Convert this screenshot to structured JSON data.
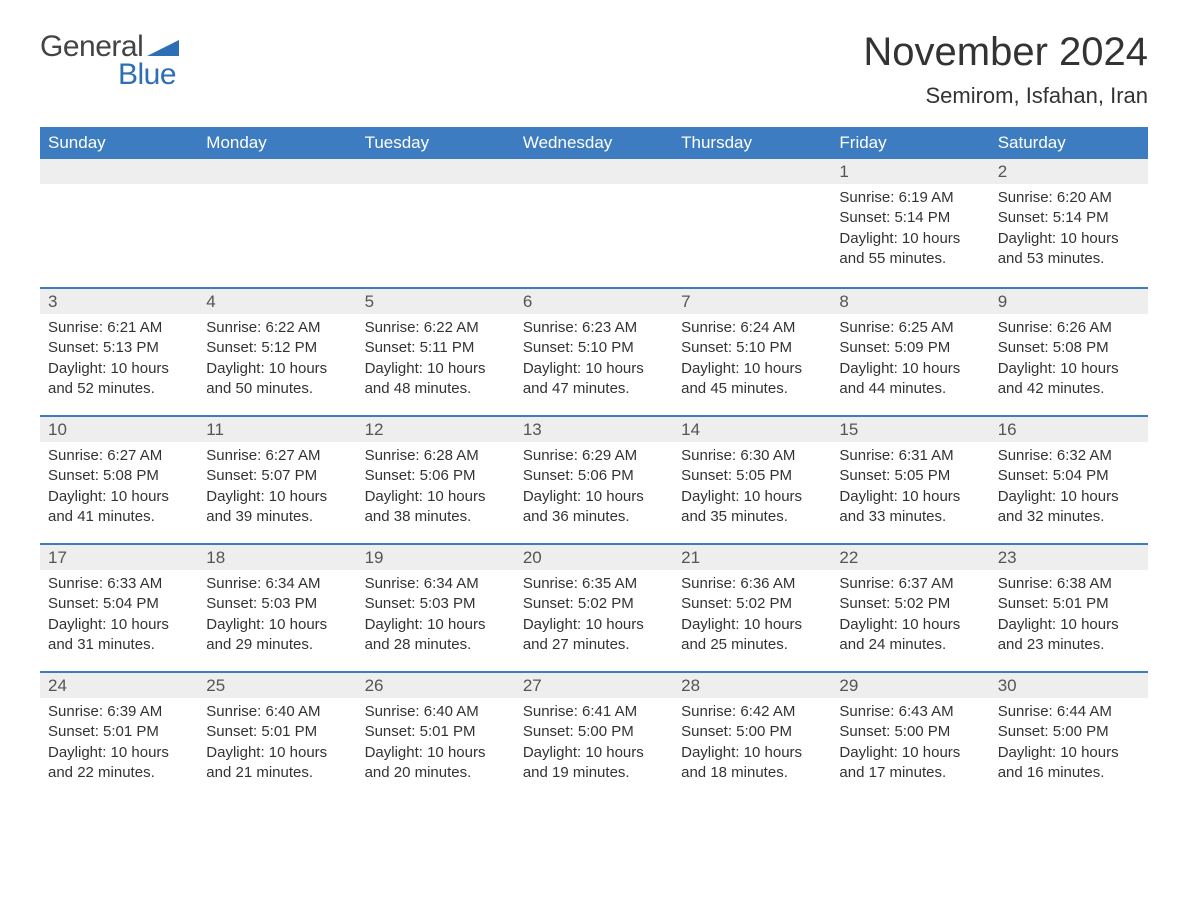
{
  "brand": {
    "general": "General",
    "blue": "Blue"
  },
  "title": "November 2024",
  "location": "Semirom, Isfahan, Iran",
  "colors": {
    "header_bg": "#3d7cc0",
    "header_text": "#ffffff",
    "daynum_bg": "#eeeeee",
    "row_divider": "#3d7cc0",
    "body_text": "#333333",
    "brand_blue": "#2d6fb5",
    "page_bg": "#ffffff"
  },
  "fonts": {
    "family": "Arial",
    "month_title_pt": 30,
    "location_pt": 16,
    "weekday_pt": 13,
    "daynum_pt": 13,
    "body_pt": 11
  },
  "weekdays": [
    "Sunday",
    "Monday",
    "Tuesday",
    "Wednesday",
    "Thursday",
    "Friday",
    "Saturday"
  ],
  "leading_blanks": 5,
  "days": [
    {
      "n": 1,
      "sunrise": "6:19 AM",
      "sunset": "5:14 PM",
      "daylight": "10 hours and 55 minutes."
    },
    {
      "n": 2,
      "sunrise": "6:20 AM",
      "sunset": "5:14 PM",
      "daylight": "10 hours and 53 minutes."
    },
    {
      "n": 3,
      "sunrise": "6:21 AM",
      "sunset": "5:13 PM",
      "daylight": "10 hours and 52 minutes."
    },
    {
      "n": 4,
      "sunrise": "6:22 AM",
      "sunset": "5:12 PM",
      "daylight": "10 hours and 50 minutes."
    },
    {
      "n": 5,
      "sunrise": "6:22 AM",
      "sunset": "5:11 PM",
      "daylight": "10 hours and 48 minutes."
    },
    {
      "n": 6,
      "sunrise": "6:23 AM",
      "sunset": "5:10 PM",
      "daylight": "10 hours and 47 minutes."
    },
    {
      "n": 7,
      "sunrise": "6:24 AM",
      "sunset": "5:10 PM",
      "daylight": "10 hours and 45 minutes."
    },
    {
      "n": 8,
      "sunrise": "6:25 AM",
      "sunset": "5:09 PM",
      "daylight": "10 hours and 44 minutes."
    },
    {
      "n": 9,
      "sunrise": "6:26 AM",
      "sunset": "5:08 PM",
      "daylight": "10 hours and 42 minutes."
    },
    {
      "n": 10,
      "sunrise": "6:27 AM",
      "sunset": "5:08 PM",
      "daylight": "10 hours and 41 minutes."
    },
    {
      "n": 11,
      "sunrise": "6:27 AM",
      "sunset": "5:07 PM",
      "daylight": "10 hours and 39 minutes."
    },
    {
      "n": 12,
      "sunrise": "6:28 AM",
      "sunset": "5:06 PM",
      "daylight": "10 hours and 38 minutes."
    },
    {
      "n": 13,
      "sunrise": "6:29 AM",
      "sunset": "5:06 PM",
      "daylight": "10 hours and 36 minutes."
    },
    {
      "n": 14,
      "sunrise": "6:30 AM",
      "sunset": "5:05 PM",
      "daylight": "10 hours and 35 minutes."
    },
    {
      "n": 15,
      "sunrise": "6:31 AM",
      "sunset": "5:05 PM",
      "daylight": "10 hours and 33 minutes."
    },
    {
      "n": 16,
      "sunrise": "6:32 AM",
      "sunset": "5:04 PM",
      "daylight": "10 hours and 32 minutes."
    },
    {
      "n": 17,
      "sunrise": "6:33 AM",
      "sunset": "5:04 PM",
      "daylight": "10 hours and 31 minutes."
    },
    {
      "n": 18,
      "sunrise": "6:34 AM",
      "sunset": "5:03 PM",
      "daylight": "10 hours and 29 minutes."
    },
    {
      "n": 19,
      "sunrise": "6:34 AM",
      "sunset": "5:03 PM",
      "daylight": "10 hours and 28 minutes."
    },
    {
      "n": 20,
      "sunrise": "6:35 AM",
      "sunset": "5:02 PM",
      "daylight": "10 hours and 27 minutes."
    },
    {
      "n": 21,
      "sunrise": "6:36 AM",
      "sunset": "5:02 PM",
      "daylight": "10 hours and 25 minutes."
    },
    {
      "n": 22,
      "sunrise": "6:37 AM",
      "sunset": "5:02 PM",
      "daylight": "10 hours and 24 minutes."
    },
    {
      "n": 23,
      "sunrise": "6:38 AM",
      "sunset": "5:01 PM",
      "daylight": "10 hours and 23 minutes."
    },
    {
      "n": 24,
      "sunrise": "6:39 AM",
      "sunset": "5:01 PM",
      "daylight": "10 hours and 22 minutes."
    },
    {
      "n": 25,
      "sunrise": "6:40 AM",
      "sunset": "5:01 PM",
      "daylight": "10 hours and 21 minutes."
    },
    {
      "n": 26,
      "sunrise": "6:40 AM",
      "sunset": "5:01 PM",
      "daylight": "10 hours and 20 minutes."
    },
    {
      "n": 27,
      "sunrise": "6:41 AM",
      "sunset": "5:00 PM",
      "daylight": "10 hours and 19 minutes."
    },
    {
      "n": 28,
      "sunrise": "6:42 AM",
      "sunset": "5:00 PM",
      "daylight": "10 hours and 18 minutes."
    },
    {
      "n": 29,
      "sunrise": "6:43 AM",
      "sunset": "5:00 PM",
      "daylight": "10 hours and 17 minutes."
    },
    {
      "n": 30,
      "sunrise": "6:44 AM",
      "sunset": "5:00 PM",
      "daylight": "10 hours and 16 minutes."
    }
  ],
  "labels": {
    "sunrise": "Sunrise:",
    "sunset": "Sunset:",
    "daylight": "Daylight:"
  }
}
